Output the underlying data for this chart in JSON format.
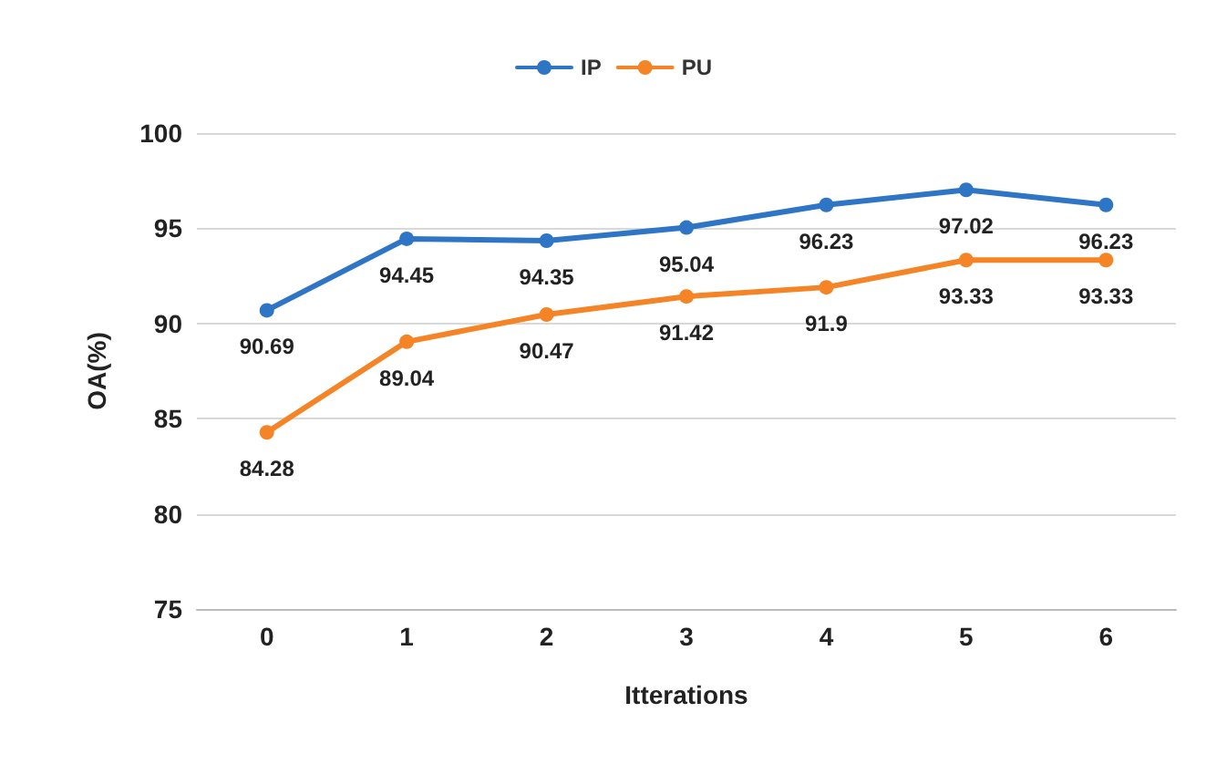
{
  "chart_data": {
    "type": "line",
    "xlabel": "Itterations",
    "ylabel": "OA(%)",
    "categories": [
      "0",
      "1",
      "2",
      "3",
      "4",
      "5",
      "6"
    ],
    "series": [
      {
        "name": "IP",
        "color": "#2e75c6",
        "values": [
          90.69,
          94.45,
          94.35,
          95.04,
          96.23,
          97.02,
          96.23
        ]
      },
      {
        "name": "PU",
        "color": "#f58426",
        "values": [
          84.28,
          89.04,
          90.47,
          91.42,
          91.9,
          93.33,
          93.33
        ]
      }
    ],
    "ylim": [
      75,
      100
    ],
    "yticks": [
      75,
      80,
      85,
      90,
      95,
      100
    ],
    "grid": "y",
    "legend": "top",
    "marker": "circle",
    "line_style": "solid",
    "data_labels": true
  }
}
